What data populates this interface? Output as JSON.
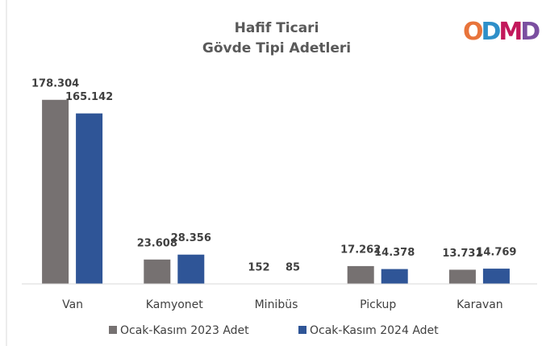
{
  "chart_data": {
    "type": "bar",
    "title": [
      "Hafif Ticari",
      "Gövde Tipi Adetleri"
    ],
    "logo": [
      "O",
      "D",
      "M",
      "D"
    ],
    "categories": [
      "Van",
      "Kamyonet",
      "Minibüs",
      "Pickup",
      "Karavan"
    ],
    "series": [
      {
        "name": "Ocak-Kasım 2023 Adet",
        "color": "#767171",
        "values": [
          178304,
          23608,
          152,
          17262,
          13731
        ],
        "value_labels": [
          "178.304",
          "23.608",
          "152",
          "17.262",
          "13.731"
        ]
      },
      {
        "name": "Ocak-Kasım 2024 Adet",
        "color": "#2f5597",
        "values": [
          165142,
          28356,
          85,
          14378,
          14769
        ],
        "value_labels": [
          "165.142",
          "28.356",
          "85",
          "14.378",
          "14.769"
        ]
      }
    ],
    "ylim": [
      0,
      200000
    ],
    "legend": "bottom"
  }
}
